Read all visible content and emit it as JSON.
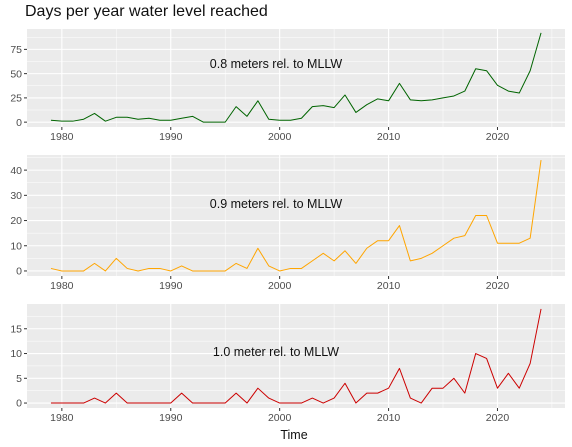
{
  "figure": {
    "title": "Days per year water level reached",
    "xlabel": "Time"
  },
  "chart_data": [
    {
      "type": "line",
      "annotation": "0.8 meters rel. to MLLW",
      "color": "#006400",
      "x": [
        1979,
        1980,
        1981,
        1982,
        1983,
        1984,
        1985,
        1986,
        1987,
        1988,
        1989,
        1990,
        1991,
        1992,
        1993,
        1994,
        1995,
        1996,
        1997,
        1998,
        1999,
        2000,
        2001,
        2002,
        2003,
        2004,
        2005,
        2006,
        2007,
        2008,
        2009,
        2010,
        2011,
        2012,
        2013,
        2014,
        2015,
        2016,
        2017,
        2018,
        2019,
        2020,
        2021,
        2022,
        2023,
        2024
      ],
      "values": [
        2,
        1,
        1,
        3,
        9,
        1,
        5,
        5,
        3,
        4,
        2,
        2,
        4,
        6,
        0,
        0,
        0,
        16,
        6,
        22,
        3,
        2,
        2,
        4,
        16,
        17,
        15,
        28,
        10,
        18,
        24,
        22,
        40,
        23,
        22,
        23,
        25,
        27,
        32,
        55,
        53,
        38,
        32,
        30,
        53,
        92
      ],
      "xlim": [
        1976.8,
        2026.2
      ],
      "ylim": [
        -5,
        96
      ],
      "yticks": [
        0,
        25,
        50,
        75
      ],
      "xticks": [
        1980,
        1990,
        2000,
        2010,
        2020
      ]
    },
    {
      "type": "line",
      "annotation": "0.9 meters rel. to MLLW",
      "color": "#FFA500",
      "x": [
        1979,
        1980,
        1981,
        1982,
        1983,
        1984,
        1985,
        1986,
        1987,
        1988,
        1989,
        1990,
        1991,
        1992,
        1993,
        1994,
        1995,
        1996,
        1997,
        1998,
        1999,
        2000,
        2001,
        2002,
        2003,
        2004,
        2005,
        2006,
        2007,
        2008,
        2009,
        2010,
        2011,
        2012,
        2013,
        2014,
        2015,
        2016,
        2017,
        2018,
        2019,
        2020,
        2021,
        2022,
        2023,
        2024
      ],
      "values": [
        1,
        0,
        0,
        0,
        3,
        0,
        5,
        1,
        0,
        1,
        1,
        0,
        2,
        0,
        0,
        0,
        0,
        3,
        1,
        9,
        2,
        0,
        1,
        1,
        4,
        7,
        4,
        8,
        3,
        9,
        12,
        12,
        18,
        4,
        5,
        7,
        10,
        13,
        14,
        22,
        22,
        11,
        11,
        11,
        13,
        44
      ],
      "xlim": [
        1976.8,
        2026.2
      ],
      "ylim": [
        -2,
        46
      ],
      "yticks": [
        0,
        10,
        20,
        30,
        40
      ],
      "xticks": [
        1980,
        1990,
        2000,
        2010,
        2020
      ]
    },
    {
      "type": "line",
      "annotation": "1.0 meter rel. to MLLW",
      "color": "#CC0000",
      "x": [
        1979,
        1980,
        1981,
        1982,
        1983,
        1984,
        1985,
        1986,
        1987,
        1988,
        1989,
        1990,
        1991,
        1992,
        1993,
        1994,
        1995,
        1996,
        1997,
        1998,
        1999,
        2000,
        2001,
        2002,
        2003,
        2004,
        2005,
        2006,
        2007,
        2008,
        2009,
        2010,
        2011,
        2012,
        2013,
        2014,
        2015,
        2016,
        2017,
        2018,
        2019,
        2020,
        2021,
        2022,
        2023,
        2024
      ],
      "values": [
        0,
        0,
        0,
        0,
        1,
        0,
        2,
        0,
        0,
        0,
        0,
        0,
        2,
        0,
        0,
        0,
        0,
        2,
        0,
        3,
        1,
        0,
        0,
        0,
        1,
        0,
        1,
        4,
        0,
        2,
        2,
        3,
        7,
        1,
        0,
        3,
        3,
        5,
        2,
        10,
        9,
        3,
        6,
        3,
        8,
        19
      ],
      "xlim": [
        1976.8,
        2026.2
      ],
      "ylim": [
        -1,
        20
      ],
      "yticks": [
        0,
        5,
        10,
        15
      ],
      "xticks": [
        1980,
        1990,
        2000,
        2010,
        2020
      ]
    }
  ]
}
